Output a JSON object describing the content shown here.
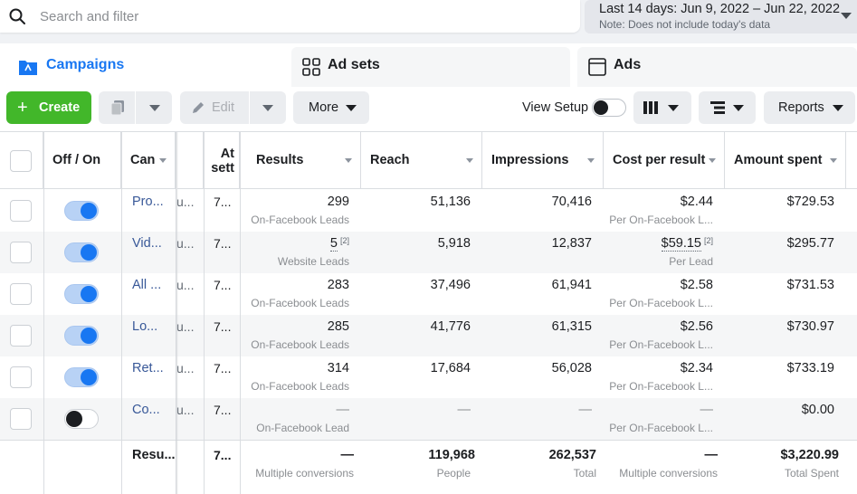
{
  "search": {
    "placeholder": "Search and filter"
  },
  "date_range": {
    "label": "Last 14 days: Jun 9, 2022 – Jun 22, 2022",
    "note": "Note: Does not include today's data"
  },
  "tabs": [
    {
      "label": "Campaigns",
      "icon": "campaign-folder-icon",
      "active": true
    },
    {
      "label": "Ad sets",
      "icon": "ad-sets-grid-icon",
      "active": false
    },
    {
      "label": "Ads",
      "icon": "ads-window-icon",
      "active": false
    }
  ],
  "toolbar": {
    "create_label": "Create",
    "edit_label": "Edit",
    "more_label": "More",
    "view_setup_label": "View Setup",
    "reports_label": "Reports"
  },
  "table": {
    "headers": {
      "off_on": "Off / On",
      "campaign": "Can",
      "attribution": "At sett",
      "results": "Results",
      "reach": "Reach",
      "impressions": "Impressions",
      "cost_per_result": "Cost per result",
      "amount_spent": "Amount spent"
    },
    "rows": [
      {
        "on": true,
        "name": "Pro...",
        "delivery": "u...",
        "attribution": "7...",
        "results": "299",
        "results_sup": "",
        "results_sub": "On-Facebook Leads",
        "reach": "51,136",
        "impressions": "70,416",
        "cost": "$2.44",
        "cost_sup": "",
        "cost_sub": "Per On-Facebook L...",
        "spent": "$729.53"
      },
      {
        "on": true,
        "name": "Vid...",
        "delivery": "u...",
        "attribution": "7...",
        "results": "5",
        "results_sup": "[2]",
        "results_sub": "Website Leads",
        "reach": "5,918",
        "impressions": "12,837",
        "cost": "$59.15",
        "cost_sup": "[2]",
        "cost_sub": "Per Lead",
        "spent": "$295.77"
      },
      {
        "on": true,
        "name": "All ...",
        "delivery": "u...",
        "attribution": "7...",
        "results": "283",
        "results_sup": "",
        "results_sub": "On-Facebook Leads",
        "reach": "37,496",
        "impressions": "61,941",
        "cost": "$2.58",
        "cost_sup": "",
        "cost_sub": "Per On-Facebook L...",
        "spent": "$731.53"
      },
      {
        "on": true,
        "name": "Lo...",
        "delivery": "u...",
        "attribution": "7...",
        "results": "285",
        "results_sup": "",
        "results_sub": "On-Facebook Leads",
        "reach": "41,776",
        "impressions": "61,315",
        "cost": "$2.56",
        "cost_sup": "",
        "cost_sub": "Per On-Facebook L...",
        "spent": "$730.97"
      },
      {
        "on": true,
        "name": "Ret...",
        "delivery": "u...",
        "attribution": "7...",
        "results": "314",
        "results_sup": "",
        "results_sub": "On-Facebook Leads",
        "reach": "17,684",
        "impressions": "56,028",
        "cost": "$2.34",
        "cost_sup": "",
        "cost_sub": "Per On-Facebook L...",
        "spent": "$733.19"
      },
      {
        "on": false,
        "name": "Co...",
        "delivery": "u...",
        "attribution": "7...",
        "results": "—",
        "results_sup": "",
        "results_sub": "On-Facebook Lead",
        "reach": "—",
        "impressions": "—",
        "cost": "—",
        "cost_sup": "",
        "cost_sub": "Per On-Facebook L...",
        "spent": "$0.00"
      }
    ],
    "totals": {
      "name": "Resu...",
      "attribution": "7...",
      "results": "—",
      "results_sub": "Multiple conversions",
      "reach": "119,968",
      "reach_sub": "People",
      "impressions": "262,537",
      "impressions_sub": "Total",
      "cost": "—",
      "cost_sub": "Multiple conversions",
      "spent": "$3,220.99",
      "spent_sub": "Total Spent"
    }
  },
  "colors": {
    "accent": "#1877f2",
    "create": "#42b72a",
    "link": "#385898"
  }
}
